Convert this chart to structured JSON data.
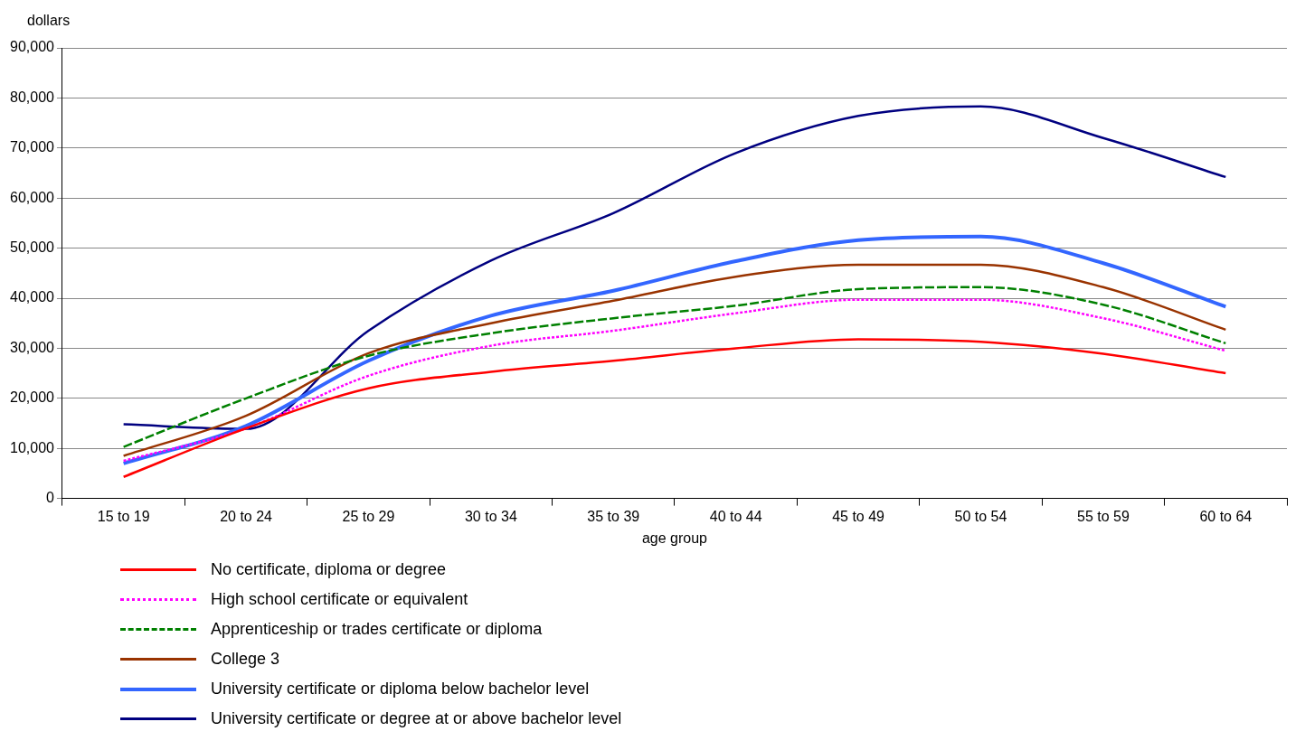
{
  "chart_data": {
    "type": "line",
    "ylabel": "dollars",
    "xlabel": "age group",
    "categories": [
      "15 to 19",
      "20 to 24",
      "25 to 29",
      "30 to 34",
      "35 to 39",
      "40 to 44",
      "45 to 49",
      "50 to 54",
      "55 to 59",
      "60 to 64"
    ],
    "series": [
      {
        "name": "No certificate, diploma or degree",
        "color": "#ff0000",
        "line_style": "solid",
        "values": [
          4300,
          14000,
          22000,
          25300,
          27500,
          30000,
          31800,
          31300,
          28900,
          25000
        ]
      },
      {
        "name": "High school certificate or equivalent",
        "color": "#ff00ff",
        "line_style": "dotted",
        "values": [
          7500,
          14000,
          24500,
          30500,
          33500,
          37000,
          39700,
          39700,
          36000,
          29500
        ]
      },
      {
        "name": "Apprenticeship or trades certificate or diploma",
        "color": "#008000",
        "line_style": "dashed",
        "values": [
          10300,
          20000,
          28500,
          33000,
          36000,
          38500,
          41800,
          42200,
          38700,
          31000
        ]
      },
      {
        "name": "College  3",
        "color": "#993300",
        "line_style": "solid",
        "values": [
          8500,
          16500,
          29000,
          35000,
          39500,
          44300,
          46700,
          46700,
          42200,
          33700
        ]
      },
      {
        "name": "University certificate or diploma below bachelor level",
        "color": "#3366ff",
        "line_style": "solid",
        "values": [
          7000,
          14500,
          27500,
          36500,
          41500,
          47400,
          51600,
          52300,
          47000,
          38300
        ]
      },
      {
        "name": "University certificate or degree at or above bachelor level",
        "color": "#000080",
        "line_style": "solid",
        "values": [
          14800,
          13900,
          33500,
          47500,
          57000,
          69000,
          76400,
          78300,
          72000,
          64200
        ]
      }
    ],
    "ylim": [
      0,
      90000
    ],
    "yticks": [
      0,
      {
        "value": 10000,
        "label": "10,000"
      },
      {
        "value": 20000,
        "label": "20,000"
      },
      {
        "value": 30000,
        "label": "30,000"
      },
      {
        "value": 40000,
        "label": "40,000"
      },
      {
        "value": 50000,
        "label": "50,000"
      },
      {
        "value": 60000,
        "label": "60,000"
      },
      {
        "value": 70000,
        "label": "70,000"
      },
      {
        "value": 80000,
        "label": "80,000"
      },
      {
        "value": 90000,
        "label": "90,000"
      }
    ],
    "grid": "y",
    "legend": "bottom left",
    "marker": "none"
  }
}
